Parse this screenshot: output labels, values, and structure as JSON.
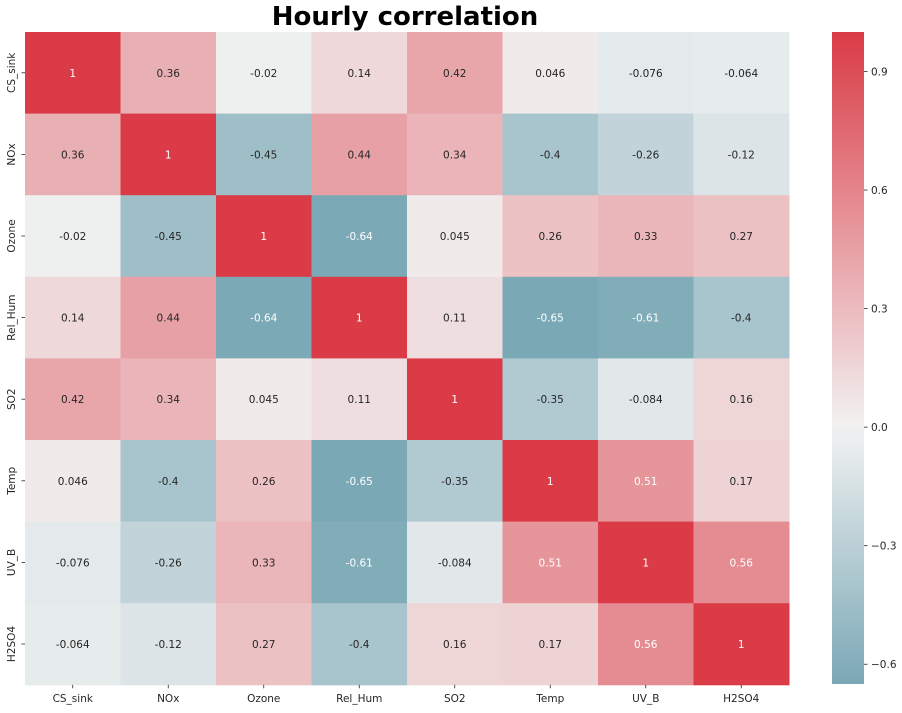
{
  "chart_data": {
    "type": "heatmap",
    "title": "Hourly correlation",
    "xlabel": "",
    "ylabel": "",
    "x_labels": [
      "CS_sink",
      "NOx",
      "Ozone",
      "Rel_Hum",
      "SO2",
      "Temp",
      "UV_B",
      "H2SO4"
    ],
    "y_labels": [
      "CS_sink",
      "NOx",
      "Ozone",
      "Rel_Hum",
      "SO2",
      "Temp",
      "UV_B",
      "H2SO4"
    ],
    "values": [
      [
        1,
        0.36,
        -0.02,
        0.14,
        0.42,
        0.046,
        -0.076,
        -0.064
      ],
      [
        0.36,
        1,
        -0.45,
        0.44,
        0.34,
        -0.4,
        -0.26,
        -0.12
      ],
      [
        -0.02,
        -0.45,
        1,
        -0.64,
        0.045,
        0.26,
        0.33,
        0.27
      ],
      [
        0.14,
        0.44,
        -0.64,
        1,
        0.11,
        -0.65,
        -0.61,
        -0.4
      ],
      [
        0.42,
        0.34,
        0.045,
        0.11,
        1,
        -0.35,
        -0.084,
        0.16
      ],
      [
        0.046,
        -0.4,
        0.26,
        -0.65,
        -0.35,
        1,
        0.51,
        0.17
      ],
      [
        -0.076,
        -0.26,
        0.33,
        -0.61,
        -0.084,
        0.51,
        1,
        0.56
      ],
      [
        -0.064,
        -0.12,
        0.27,
        -0.4,
        0.16,
        0.17,
        0.56,
        1
      ]
    ],
    "annotations": [
      [
        "1",
        "0.36",
        "-0.02",
        "0.14",
        "0.42",
        "0.046",
        "-0.076",
        "-0.064"
      ],
      [
        "0.36",
        "1",
        "-0.45",
        "0.44",
        "0.34",
        "-0.4",
        "-0.26",
        "-0.12"
      ],
      [
        "-0.02",
        "-0.45",
        "1",
        "-0.64",
        "0.045",
        "0.26",
        "0.33",
        "0.27"
      ],
      [
        "0.14",
        "0.44",
        "-0.64",
        "1",
        "0.11",
        "-0.65",
        "-0.61",
        "-0.4"
      ],
      [
        "0.42",
        "0.34",
        "0.045",
        "0.11",
        "1",
        "-0.35",
        "-0.084",
        "0.16"
      ],
      [
        "0.046",
        "-0.4",
        "0.26",
        "-0.65",
        "-0.35",
        "1",
        "0.51",
        "0.17"
      ],
      [
        "-0.076",
        "-0.26",
        "0.33",
        "-0.61",
        "-0.084",
        "0.51",
        "1",
        "0.56"
      ],
      [
        "-0.064",
        "-0.12",
        "0.27",
        "-0.4",
        "0.16",
        "0.17",
        "0.56",
        "1"
      ]
    ],
    "colorbar": {
      "vmin": -0.65,
      "vmax": 1.0,
      "center": 0,
      "ticks": [
        0.9,
        0.6,
        0.3,
        0.0,
        -0.3,
        -0.6
      ],
      "tick_labels": [
        "0.9",
        "0.6",
        "0.3",
        "0.0",
        "−0.3",
        "−0.6"
      ],
      "colors": {
        "low": "#7aa8b5",
        "mid": "#f2f2f2",
        "high": "#da3b46"
      }
    },
    "grid": false,
    "legend": "colorbar-right"
  }
}
